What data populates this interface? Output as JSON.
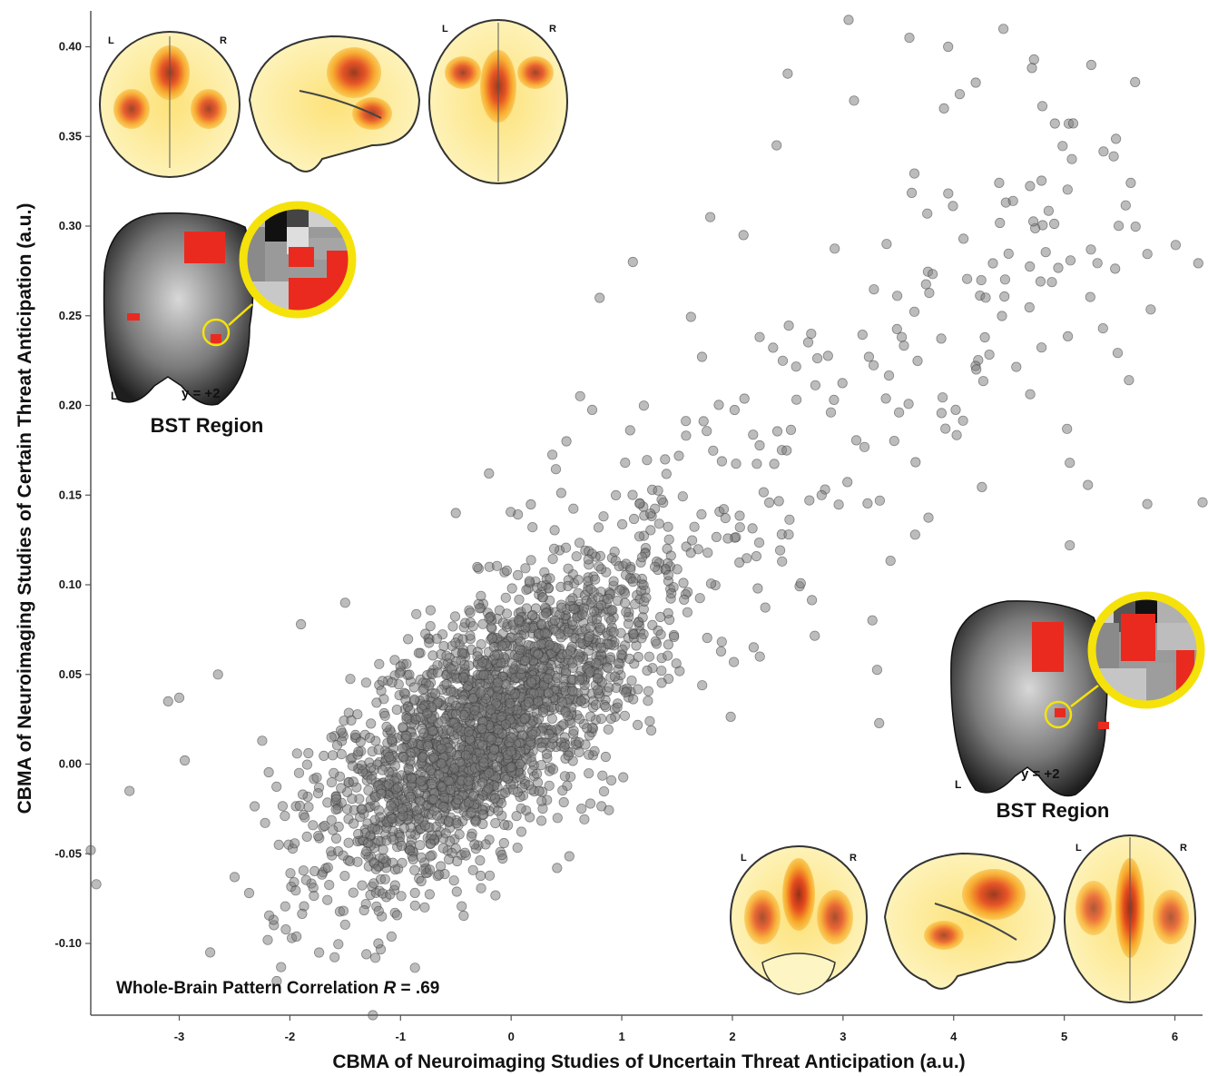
{
  "chart_data": {
    "type": "scatter",
    "title": "",
    "xlabel": "CBMA of Neuroimaging Studies of Uncertain Threat Anticipation (a.u.)",
    "ylabel": "CBMA of Neuroimaging Studies of Certain Threat Anticipation (a.u.)",
    "xlim": [
      -3.8,
      6.25
    ],
    "ylim": [
      -0.14,
      0.42
    ],
    "xticks": [
      "-3",
      "-2",
      "-1",
      "0",
      "1",
      "2",
      "3",
      "4",
      "5",
      "6"
    ],
    "yticks": [
      "-0.10",
      "-0.05",
      "0.00",
      "0.05",
      "0.10",
      "0.15",
      "0.20",
      "0.25",
      "0.30",
      "0.35",
      "0.40"
    ],
    "grid": false,
    "point_color": "#7a7a7a",
    "annotations": {
      "correlation": {
        "prefix": "Whole-Brain Pattern Correlation ",
        "italic": "R",
        "suffix": " = .69"
      },
      "inset_top": {
        "left": "L",
        "right": "R",
        "slice": "y = +2",
        "region": "BST Region"
      },
      "inset_bottom": {
        "left": "L",
        "right": "R",
        "slice": "y = +2",
        "region": "BST Region"
      }
    },
    "series": [
      {
        "values_sample": [
          [
            -3.45,
            -0.015
          ],
          [
            -3.1,
            0.035
          ],
          [
            -3.0,
            0.037
          ],
          [
            -2.95,
            0.002
          ],
          [
            -2.72,
            -0.105
          ],
          [
            -2.65,
            0.05
          ],
          [
            -2.5,
            -0.063
          ],
          [
            -2.25,
            0.013
          ],
          [
            -2.1,
            -0.045
          ],
          [
            -1.9,
            0.078
          ],
          [
            -1.5,
            0.09
          ],
          [
            -1.2,
            -0.1
          ],
          [
            -0.5,
            0.14
          ],
          [
            0.5,
            0.18
          ],
          [
            0.8,
            0.26
          ],
          [
            1.1,
            0.28
          ],
          [
            1.3,
            0.11
          ],
          [
            1.8,
            0.305
          ],
          [
            2.1,
            0.295
          ],
          [
            2.4,
            0.345
          ],
          [
            2.5,
            0.385
          ],
          [
            3.05,
            0.415
          ],
          [
            3.6,
            0.405
          ],
          [
            3.95,
            0.4
          ],
          [
            4.45,
            0.41
          ],
          [
            4.2,
            0.38
          ],
          [
            3.1,
            0.37
          ],
          [
            5.05,
            0.168
          ],
          [
            5.35,
            0.243
          ],
          [
            5.05,
            0.122
          ],
          [
            5.75,
            0.145
          ],
          [
            6.25,
            0.146
          ],
          [
            -3.8,
            -0.048
          ],
          [
            -3.75,
            -0.067
          ],
          [
            -1.25,
            -0.14
          ],
          [
            -0.55,
            -0.145
          ]
        ],
        "generated": {
          "n": 2650,
          "seed": 42,
          "x_mean": -0.25,
          "x_sd": 0.72,
          "y_mean": 0.02,
          "y_sd": 0.045,
          "r": 0.69
        }
      }
    ]
  }
}
